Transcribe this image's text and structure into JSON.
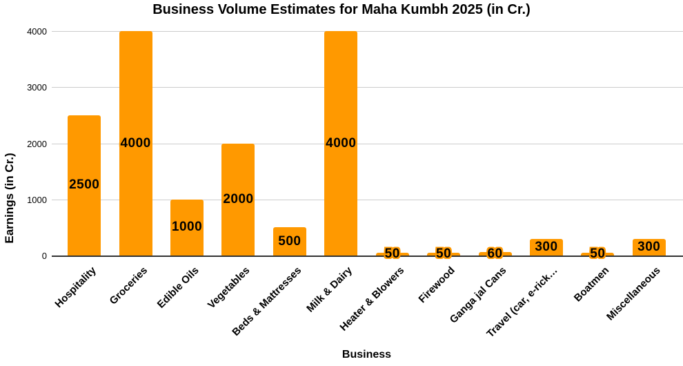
{
  "chart_data": {
    "type": "bar",
    "title": "Business Volume Estimates for Maha Kumbh 2025 (in Cr.)",
    "xlabel": "Business",
    "ylabel": "Earnings (in Cr.)",
    "categories": [
      "Hospitality",
      "Groceries",
      "Edible Oils",
      "Vegetables",
      "Beds & Mattresses",
      "Milk & Dairy",
      "Heater & Blowers",
      "Firewood",
      "Ganga jal Cans",
      "Travel (car, e-rick…",
      "Boatmen",
      "Miscellaneous"
    ],
    "values": [
      2500,
      4000,
      1000,
      2000,
      500,
      4000,
      50,
      50,
      60,
      300,
      50,
      300
    ],
    "annotations": [
      "2500",
      "4000",
      "1000",
      "2000",
      "500",
      "4000",
      "50",
      "50",
      "60",
      "300",
      "50",
      "300"
    ],
    "yticks": [
      0,
      1000,
      2000,
      3000,
      4000
    ],
    "ylim": [
      0,
      4000
    ],
    "grid": true,
    "legend": "none",
    "bar_color": "#FF9900",
    "gridline_color": "#CCCCCC",
    "baseline_color": "#333333",
    "text_color": "#000000"
  }
}
